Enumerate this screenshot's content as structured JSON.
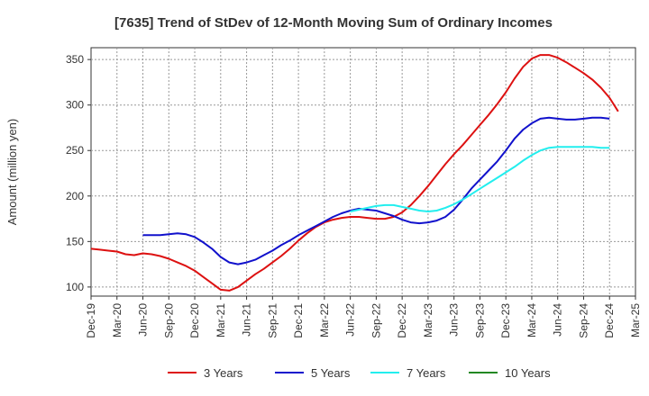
{
  "chart_data": {
    "type": "line",
    "title": "[7635]  Trend of StDev of 12-Month Moving Sum of Ordinary Incomes",
    "xlabel": "",
    "ylabel": "Amount (million yen)",
    "ylim": [
      90,
      363
    ],
    "yticks": [
      100,
      150,
      200,
      250,
      300,
      350
    ],
    "grid": true,
    "legend_position": "bottom",
    "x_tick_labels": [
      "Dec-19",
      "Mar-20",
      "Jun-20",
      "Sep-20",
      "Dec-20",
      "Mar-21",
      "Jun-21",
      "Sep-21",
      "Dec-21",
      "Mar-22",
      "Jun-22",
      "Sep-22",
      "Dec-22",
      "Mar-23",
      "Jun-23",
      "Sep-23",
      "Dec-23",
      "Mar-24",
      "Jun-24",
      "Sep-24",
      "Dec-24",
      "Mar-25"
    ],
    "series": [
      {
        "name": "3 Years",
        "color": "#dd1111",
        "start_index": 0,
        "values": [
          142,
          141,
          140,
          139,
          136,
          135,
          137,
          136,
          134,
          131,
          127,
          123,
          118,
          111,
          104,
          97,
          96,
          100,
          107,
          114,
          120,
          127,
          134,
          142,
          151,
          159,
          166,
          171,
          174,
          176,
          177,
          177,
          176,
          175,
          175,
          177,
          182,
          190,
          200,
          211,
          223,
          235,
          246,
          256,
          267,
          278,
          289,
          301,
          314,
          329,
          342,
          351,
          355,
          355,
          352,
          347,
          341,
          335,
          328,
          319,
          308,
          293
        ]
      },
      {
        "name": "5 Years",
        "color": "#1111cc",
        "start_index": 6,
        "values": [
          157,
          157,
          157,
          158,
          159,
          158,
          155,
          149,
          142,
          133,
          127,
          125,
          127,
          130,
          135,
          140,
          146,
          151,
          157,
          162,
          167,
          172,
          177,
          181,
          184,
          186,
          185,
          184,
          181,
          178,
          174,
          171,
          170,
          171,
          173,
          177,
          185,
          196,
          208,
          218,
          228,
          238,
          250,
          263,
          273,
          280,
          285,
          286,
          285,
          284,
          284,
          285,
          286,
          286,
          285
        ]
      },
      {
        "name": "7 Years",
        "color": "#22eeee",
        "start_index": 30,
        "values": [
          183,
          185,
          187,
          189,
          190,
          190,
          188,
          186,
          184,
          183,
          184,
          187,
          191,
          196,
          202,
          208,
          214,
          220,
          226,
          232,
          239,
          245,
          250,
          253,
          254,
          254,
          254,
          254,
          254,
          253,
          253
        ]
      },
      {
        "name": "10 Years",
        "color": "#228822",
        "start_index": 0,
        "values": []
      }
    ]
  }
}
